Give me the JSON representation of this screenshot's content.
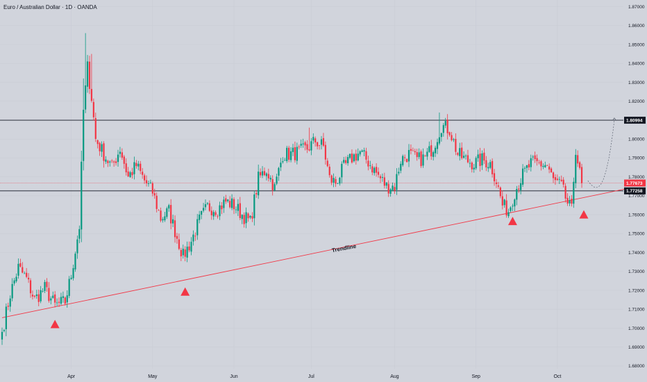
{
  "chart_data": {
    "type": "candlestick",
    "title": "Euro / Australian Dollar · 1D · OANDA",
    "y_axis": {
      "ticks": [
        "1.87000",
        "1.86000",
        "1.85000",
        "1.84000",
        "1.83000",
        "1.82000",
        "1.81000",
        "1.80000",
        "1.79000",
        "1.78000",
        "1.77000",
        "1.76000",
        "1.75000",
        "1.74000",
        "1.73000",
        "1.72000",
        "1.71000",
        "1.70000",
        "1.69000",
        "1.68000"
      ],
      "ylim": [
        1.6785,
        1.8735
      ]
    },
    "x_axis": {
      "labels": [
        {
          "label": "Apr",
          "index": 34
        },
        {
          "label": "May",
          "index": 74
        },
        {
          "label": "Jun",
          "index": 114
        },
        {
          "label": "Jul",
          "index": 152
        },
        {
          "label": "Aug",
          "index": 193
        },
        {
          "label": "Sep",
          "index": 233
        },
        {
          "label": "Oct",
          "index": 273
        }
      ]
    },
    "price_tags": [
      {
        "label": "1.80994",
        "value": 1.80994,
        "color": "#131722"
      },
      {
        "label": "1.77673",
        "value": 1.77673,
        "color": "#f23645"
      },
      {
        "label": "1.77258",
        "value": 1.77258,
        "color": "#131722"
      }
    ],
    "horizontal_lines": [
      {
        "value": 1.80994,
        "color": "#131722"
      },
      {
        "value": 1.77258,
        "color": "#131722"
      },
      {
        "value": 1.77673,
        "color": "#f23645",
        "style": "dotted"
      }
    ],
    "trendline": {
      "label": "Trendline",
      "from": {
        "index": 0,
        "value": 1.7055
      },
      "to": {
        "index": 306,
        "value": 1.7735
      },
      "color": "#f23645"
    },
    "markers": [
      {
        "shape": "triangle-up",
        "index": 26,
        "value": 1.7018,
        "color": "#f23645"
      },
      {
        "shape": "triangle-up",
        "index": 90,
        "value": 1.719,
        "color": "#f23645"
      },
      {
        "shape": "triangle-up",
        "index": 251,
        "value": 1.7563,
        "color": "#f23645"
      },
      {
        "shape": "triangle-up",
        "index": 286,
        "value": 1.7598,
        "color": "#f23645"
      }
    ],
    "projection_path": [
      {
        "index": 288,
        "value": 1.778
      },
      {
        "index": 293,
        "value": 1.7702
      },
      {
        "index": 297,
        "value": 1.7725
      },
      {
        "index": 301,
        "value": 1.81
      }
    ],
    "up_color": "#089981",
    "down_color": "#f23645",
    "waypoints": [
      [
        0,
        1.698
      ],
      [
        4,
        1.718
      ],
      [
        8,
        1.732
      ],
      [
        12,
        1.726
      ],
      [
        16,
        1.715
      ],
      [
        21,
        1.721
      ],
      [
        26,
        1.712
      ],
      [
        31,
        1.714
      ],
      [
        34,
        1.728
      ],
      [
        38,
        1.754
      ],
      [
        40,
        1.815
      ],
      [
        42,
        1.838
      ],
      [
        44,
        1.822
      ],
      [
        46,
        1.8
      ],
      [
        50,
        1.792
      ],
      [
        54,
        1.785
      ],
      [
        58,
        1.795
      ],
      [
        62,
        1.78
      ],
      [
        66,
        1.786
      ],
      [
        70,
        1.778
      ],
      [
        74,
        1.772
      ],
      [
        78,
        1.758
      ],
      [
        82,
        1.762
      ],
      [
        86,
        1.748
      ],
      [
        89,
        1.738
      ],
      [
        93,
        1.746
      ],
      [
        97,
        1.757
      ],
      [
        101,
        1.764
      ],
      [
        106,
        1.763
      ],
      [
        110,
        1.767
      ],
      [
        114,
        1.765
      ],
      [
        118,
        1.76
      ],
      [
        122,
        1.756
      ],
      [
        126,
        1.779
      ],
      [
        130,
        1.784
      ],
      [
        134,
        1.774
      ],
      [
        138,
        1.792
      ],
      [
        142,
        1.792
      ],
      [
        146,
        1.793
      ],
      [
        150,
        1.795
      ],
      [
        154,
        1.799
      ],
      [
        158,
        1.796
      ],
      [
        161,
        1.779
      ],
      [
        164,
        1.777
      ],
      [
        168,
        1.785
      ],
      [
        172,
        1.79
      ],
      [
        176,
        1.793
      ],
      [
        180,
        1.788
      ],
      [
        184,
        1.782
      ],
      [
        189,
        1.775
      ],
      [
        193,
        1.775
      ],
      [
        196,
        1.789
      ],
      [
        200,
        1.792
      ],
      [
        204,
        1.789
      ],
      [
        208,
        1.79
      ],
      [
        212,
        1.796
      ],
      [
        216,
        1.807
      ],
      [
        220,
        1.805
      ],
      [
        224,
        1.792
      ],
      [
        228,
        1.789
      ],
      [
        232,
        1.787
      ],
      [
        236,
        1.789
      ],
      [
        240,
        1.787
      ],
      [
        243,
        1.778
      ],
      [
        246,
        1.765
      ],
      [
        249,
        1.762
      ],
      [
        252,
        1.772
      ],
      [
        256,
        1.781
      ],
      [
        260,
        1.787
      ],
      [
        264,
        1.787
      ],
      [
        268,
        1.786
      ],
      [
        271,
        1.778
      ],
      [
        275,
        1.775
      ],
      [
        278,
        1.766
      ],
      [
        280,
        1.762
      ],
      [
        282,
        1.795
      ],
      [
        285,
        1.775
      ]
    ]
  }
}
